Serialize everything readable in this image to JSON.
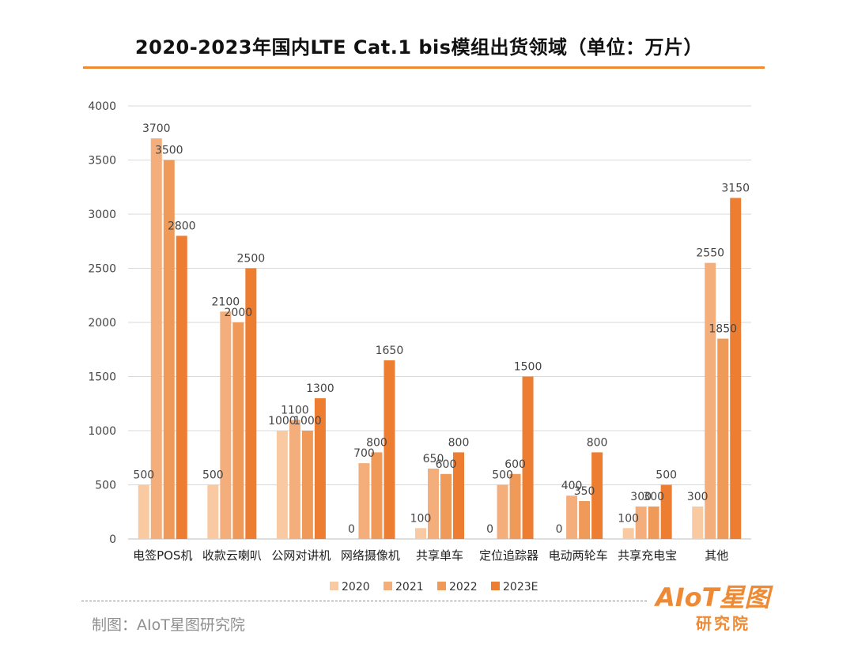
{
  "chart_data": {
    "type": "bar",
    "title": "2020-2023年国内LTE Cat.1 bis模组出货领域（单位：万片）",
    "categories": [
      "电签POS机",
      "收款云喇叭",
      "公网对讲机",
      "网络摄像机",
      "共享单车",
      "定位追踪器",
      "电动两轮车",
      "共享充电宝",
      "其他"
    ],
    "series": [
      {
        "name": "2020",
        "color": "#f9c9a2",
        "values": [
          500,
          500,
          1000,
          0,
          100,
          0,
          0,
          100,
          300
        ]
      },
      {
        "name": "2021",
        "color": "#f4ae7c",
        "values": [
          3700,
          2100,
          1100,
          700,
          650,
          500,
          400,
          300,
          2550
        ]
      },
      {
        "name": "2022",
        "color": "#f09a5a",
        "values": [
          3500,
          2000,
          1000,
          800,
          600,
          600,
          350,
          300,
          1850
        ]
      },
      {
        "name": "2023E",
        "color": "#ed7d31",
        "values": [
          2800,
          2500,
          1300,
          1650,
          800,
          1500,
          800,
          500,
          3150
        ]
      }
    ],
    "ylim": [
      0,
      4000
    ],
    "yticks": [
      0,
      500,
      1000,
      1500,
      2000,
      2500,
      3000,
      3500,
      4000
    ],
    "grid": true,
    "legend_position": "bottom"
  },
  "footer": {
    "credit": "制图：AIoT星图研究院",
    "logo_text": "AIoT星图",
    "logo_subtext": "研究院"
  },
  "colors": {
    "accent": "#ef8a34",
    "grid": "#d9d9d9"
  }
}
